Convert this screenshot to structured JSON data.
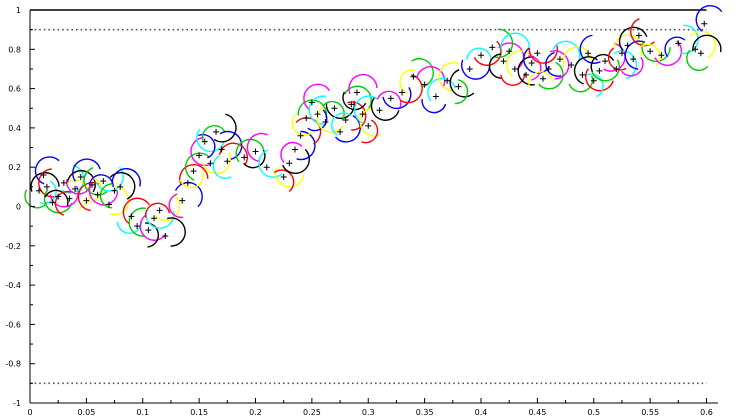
{
  "chart_data": {
    "type": "scatter",
    "title": "",
    "xlabel": "",
    "ylabel": "",
    "xlim": [
      0,
      0.6
    ],
    "ylim": [
      -1,
      1
    ],
    "xticks": [
      0,
      0.05,
      0.1,
      0.15,
      0.2,
      0.25,
      0.3,
      0.35,
      0.4,
      0.45,
      0.5,
      0.55,
      0.6
    ],
    "xtick_labels": [
      "0",
      "0.05",
      "0.1",
      "0.15",
      "0.2",
      "0.25",
      "0.3",
      "0.35",
      "0.4",
      "0.45",
      "0.5",
      "0.55",
      "0.6"
    ],
    "yticks": [
      -1,
      -0.8,
      -0.6,
      -0.4,
      -0.2,
      0,
      0.2,
      0.4,
      0.6,
      0.8,
      1
    ],
    "ytick_labels": [
      "-1",
      "-0.8",
      "-0.6",
      "-0.4",
      "-0.2",
      "0",
      "0.2",
      "0.4",
      "0.6",
      "0.8",
      "1"
    ],
    "reference_lines": [
      {
        "y": 1,
        "style": "solid"
      },
      {
        "y": 0.9,
        "style": "dotted"
      },
      {
        "y": -0.9,
        "style": "dotted"
      }
    ],
    "grid": false,
    "legend": "none",
    "arc_colors": [
      "#000000",
      "#0000ff",
      "#ff0000",
      "#00cc00",
      "#ff00ff",
      "#00ffff",
      "#ffff00"
    ],
    "series": [
      {
        "marker": "+",
        "arcs": true,
        "points": [
          [
            0.008,
            0.08
          ],
          [
            0.012,
            0.16
          ],
          [
            0.015,
            0.1
          ],
          [
            0.02,
            0.02
          ],
          [
            0.025,
            0.05
          ],
          [
            0.03,
            0.12
          ],
          [
            0.035,
            0.04
          ],
          [
            0.04,
            0.09
          ],
          [
            0.045,
            0.15
          ],
          [
            0.05,
            0.03
          ],
          [
            0.055,
            0.11
          ],
          [
            0.06,
            0.06
          ],
          [
            0.065,
            0.13
          ],
          [
            0.07,
            0.01
          ],
          [
            0.075,
            0.08
          ],
          [
            0.08,
            0.1
          ],
          [
            0.09,
            -0.05
          ],
          [
            0.095,
            -0.1
          ],
          [
            0.105,
            -0.12
          ],
          [
            0.11,
            -0.06
          ],
          [
            0.115,
            -0.02
          ],
          [
            0.12,
            -0.15
          ],
          [
            0.135,
            0.03
          ],
          [
            0.14,
            0.12
          ],
          [
            0.145,
            0.18
          ],
          [
            0.15,
            0.26
          ],
          [
            0.155,
            0.33
          ],
          [
            0.16,
            0.22
          ],
          [
            0.165,
            0.38
          ],
          [
            0.17,
            0.29
          ],
          [
            0.175,
            0.23
          ],
          [
            0.19,
            0.25
          ],
          [
            0.2,
            0.28
          ],
          [
            0.21,
            0.2
          ],
          [
            0.225,
            0.15
          ],
          [
            0.23,
            0.22
          ],
          [
            0.235,
            0.29
          ],
          [
            0.24,
            0.36
          ],
          [
            0.245,
            0.45
          ],
          [
            0.25,
            0.53
          ],
          [
            0.255,
            0.47
          ],
          [
            0.262,
            0.43
          ],
          [
            0.27,
            0.5
          ],
          [
            0.275,
            0.38
          ],
          [
            0.28,
            0.44
          ],
          [
            0.285,
            0.52
          ],
          [
            0.29,
            0.58
          ],
          [
            0.295,
            0.47
          ],
          [
            0.3,
            0.41
          ],
          [
            0.31,
            0.49
          ],
          [
            0.32,
            0.55
          ],
          [
            0.33,
            0.58
          ],
          [
            0.34,
            0.66
          ],
          [
            0.35,
            0.62
          ],
          [
            0.36,
            0.56
          ],
          [
            0.37,
            0.64
          ],
          [
            0.38,
            0.61
          ],
          [
            0.39,
            0.7
          ],
          [
            0.4,
            0.77
          ],
          [
            0.41,
            0.81
          ],
          [
            0.42,
            0.74
          ],
          [
            0.425,
            0.79
          ],
          [
            0.43,
            0.7
          ],
          [
            0.44,
            0.67
          ],
          [
            0.445,
            0.73
          ],
          [
            0.45,
            0.78
          ],
          [
            0.455,
            0.65
          ],
          [
            0.46,
            0.7
          ],
          [
            0.47,
            0.75
          ],
          [
            0.48,
            0.72
          ],
          [
            0.49,
            0.67
          ],
          [
            0.495,
            0.78
          ],
          [
            0.5,
            0.64
          ],
          [
            0.505,
            0.69
          ],
          [
            0.51,
            0.74
          ],
          [
            0.52,
            0.7
          ],
          [
            0.525,
            0.78
          ],
          [
            0.53,
            0.82
          ],
          [
            0.535,
            0.75
          ],
          [
            0.54,
            0.87
          ],
          [
            0.55,
            0.79
          ],
          [
            0.56,
            0.77
          ],
          [
            0.575,
            0.83
          ],
          [
            0.59,
            0.8
          ],
          [
            0.595,
            0.78
          ],
          [
            0.598,
            0.93
          ]
        ]
      }
    ]
  }
}
